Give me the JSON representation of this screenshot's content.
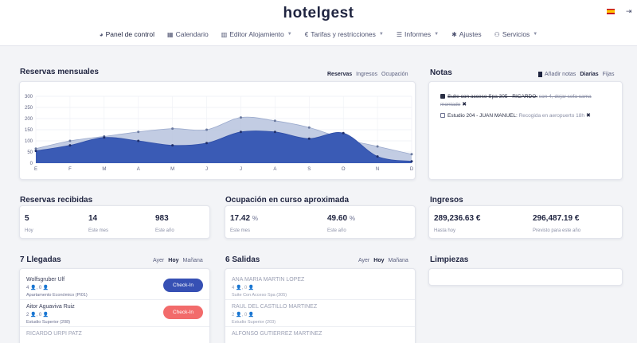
{
  "header": {
    "brand": "hotelgest",
    "logout_icon": "exit-icon",
    "nav": [
      {
        "label": "Panel de control",
        "icon": "dashboard-icon",
        "caret": false
      },
      {
        "label": "Calendario",
        "icon": "calendar-icon",
        "caret": false
      },
      {
        "label": "Editor Alojamiento",
        "icon": "building-icon",
        "caret": true
      },
      {
        "label": "Tarifas y restricciones",
        "icon": "euro-icon",
        "caret": true
      },
      {
        "label": "Informes",
        "icon": "list-icon",
        "caret": true
      },
      {
        "label": "Ajustes",
        "icon": "gear-icon",
        "caret": false
      },
      {
        "label": "Servicios",
        "icon": "services-icon",
        "caret": true
      }
    ]
  },
  "reservas_mensuales": {
    "title": "Reservas mensuales",
    "tabs": [
      "Reservas",
      "Ingresos",
      "Ocupación"
    ],
    "active_tab": "Reservas"
  },
  "chart_data": {
    "type": "area",
    "categories": [
      "E",
      "F",
      "M",
      "A",
      "M",
      "J",
      "J",
      "A",
      "S",
      "O",
      "N",
      "D"
    ],
    "ylim": [
      0,
      300
    ],
    "yticks": [
      0,
      50,
      100,
      150,
      200,
      250,
      300
    ],
    "series": [
      {
        "values": [
          65,
          100,
          120,
          140,
          155,
          150,
          205,
          190,
          160,
          110,
          75,
          40
        ],
        "color": "#b7c3de"
      },
      {
        "values": [
          55,
          80,
          115,
          100,
          80,
          90,
          140,
          140,
          110,
          135,
          30,
          8
        ],
        "color": "#3a5bb5"
      }
    ],
    "grid": true
  },
  "notas": {
    "title": "Notas",
    "add_label": "Añadir notas",
    "tabs": [
      "Diarias",
      "Fijas"
    ],
    "active_tab": "Diarias",
    "items": [
      {
        "room": "Suite con acceso Spa 305 - RICARDO:",
        "text": "son 4, dejar sofa cama montado",
        "done": true
      },
      {
        "room": "Estudio 204 - JUAN MANUEL:",
        "text": "Recogida en aeropuerto 18h",
        "done": false
      }
    ]
  },
  "reservas_recibidas": {
    "title": "Reservas recibidas",
    "stats": [
      {
        "value": "5",
        "label": "Hoy"
      },
      {
        "value": "14",
        "label": "Este mes"
      },
      {
        "value": "983",
        "label": "Este año"
      }
    ]
  },
  "ocupacion": {
    "title": "Ocupación en curso aproximada",
    "stats": [
      {
        "value": "17.42",
        "unit": "%",
        "label": "Este mes"
      },
      {
        "value": "49.60",
        "unit": "%",
        "label": "Este año"
      }
    ]
  },
  "ingresos": {
    "title": "Ingresos",
    "stats": [
      {
        "value": "289,236.63 €",
        "label": "Hasta hoy"
      },
      {
        "value": "296,487.19 €",
        "label": "Previsto para este año"
      }
    ]
  },
  "llegadas": {
    "title": "7 Llegadas",
    "tabs": [
      "Ayer",
      "Hoy",
      "Mañana"
    ],
    "active_tab": "Hoy",
    "button_label": "Check-In",
    "rows": [
      {
        "name": "Wolfsgruber Ulf",
        "adults": "4",
        "children": "0",
        "room": "Apartamento Económico (PI01)",
        "button": "blue"
      },
      {
        "name": "Aitor Aguaviva Ruiz",
        "adults": "2",
        "children": "0",
        "room": "Estudio Superior (208)",
        "button": "red"
      },
      {
        "name": "RICARDO URPI PATZ",
        "adults": "",
        "children": "",
        "room": "",
        "button": ""
      }
    ]
  },
  "salidas": {
    "title": "6 Salidas",
    "tabs": [
      "Ayer",
      "Hoy",
      "Mañana"
    ],
    "active_tab": "Hoy",
    "rows": [
      {
        "name": "ANA MARIA MARTIN LOPEZ",
        "adults": "4",
        "children": "0",
        "room": "Suite Con Acceso Spa (305)"
      },
      {
        "name": "RAUL DEL CASTILLO MARTINEZ",
        "adults": "2",
        "children": "0",
        "room": "Estudio Superior (203)"
      },
      {
        "name": "ALFONSO GUTIERREZ MARTINEZ",
        "adults": "",
        "children": "",
        "room": ""
      }
    ]
  },
  "limpiezas": {
    "title": "Limpiezas"
  }
}
